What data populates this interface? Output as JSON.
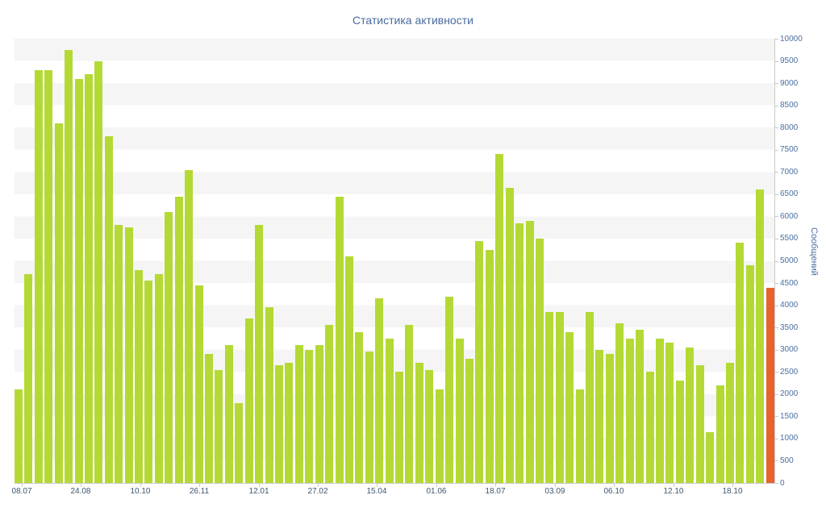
{
  "title": "Статистика активности",
  "colors": {
    "background": "#ffffff",
    "stripe_band": "#f5f5f5",
    "axis_line": "#c9c9c9",
    "title_text": "#4a6b9f",
    "y_label_text": "#4a6f9f",
    "x_label_text": "#3e576f",
    "bar": "#b4d935",
    "highlight_bar": "#e8622d"
  },
  "chart_data": {
    "type": "bar",
    "title": "Статистика активности",
    "xlabel": "",
    "ylabel": "Сообщений",
    "ylim": [
      0,
      10000
    ],
    "y_tick_step": 500,
    "y_tick_labels": [
      "10000",
      "9500",
      "9000",
      "8500",
      "8000",
      "7500",
      "7000",
      "6500",
      "6000",
      "5500",
      "5000",
      "4500",
      "4000",
      "3500",
      "3000",
      "2500",
      "2000",
      "1500",
      "1000",
      "500",
      "0"
    ],
    "x_tick_labels": [
      "08.07",
      "24.08",
      "10.10",
      "26.11",
      "12.01",
      "27.02",
      "15.04",
      "01.06",
      "18.07",
      "03.09",
      "06.10",
      "12.10",
      "18.10"
    ],
    "x_tick_positions_pct": [
      0.96,
      8.7,
      16.56,
      24.31,
      32.17,
      39.92,
      47.66,
      55.52,
      63.27,
      71.12,
      78.87,
      86.73,
      94.48
    ],
    "grid": "horizontal striped bands every 500 units, no vertical gridlines",
    "legend": "none",
    "bar_color": "#b4d935",
    "highlight_color": "#e8622d",
    "highlight_last_bar": true,
    "series": [
      {
        "name": "Сообщений",
        "values": [
          2100,
          4700,
          9300,
          9300,
          8100,
          9750,
          9100,
          9200,
          9500,
          7800,
          5800,
          5750,
          4800,
          4550,
          4700,
          6100,
          6450,
          7050,
          4450,
          2900,
          2550,
          3100,
          1800,
          3700,
          5800,
          3950,
          2650,
          2700,
          3100,
          3000,
          3100,
          3550,
          6450,
          5100,
          3400,
          2950,
          4150,
          3250,
          2500,
          3550,
          2700,
          2550,
          2100,
          4200,
          3250,
          2800,
          5450,
          5250,
          7400,
          6650,
          5850,
          5900,
          5500,
          3850,
          3850,
          3400,
          2100,
          3850,
          3000,
          2900,
          3600,
          3250,
          3450,
          2500,
          3250,
          3150,
          2300,
          3050,
          2650,
          1150,
          2200,
          2700,
          5400,
          4900,
          6600,
          4400
        ]
      }
    ]
  }
}
